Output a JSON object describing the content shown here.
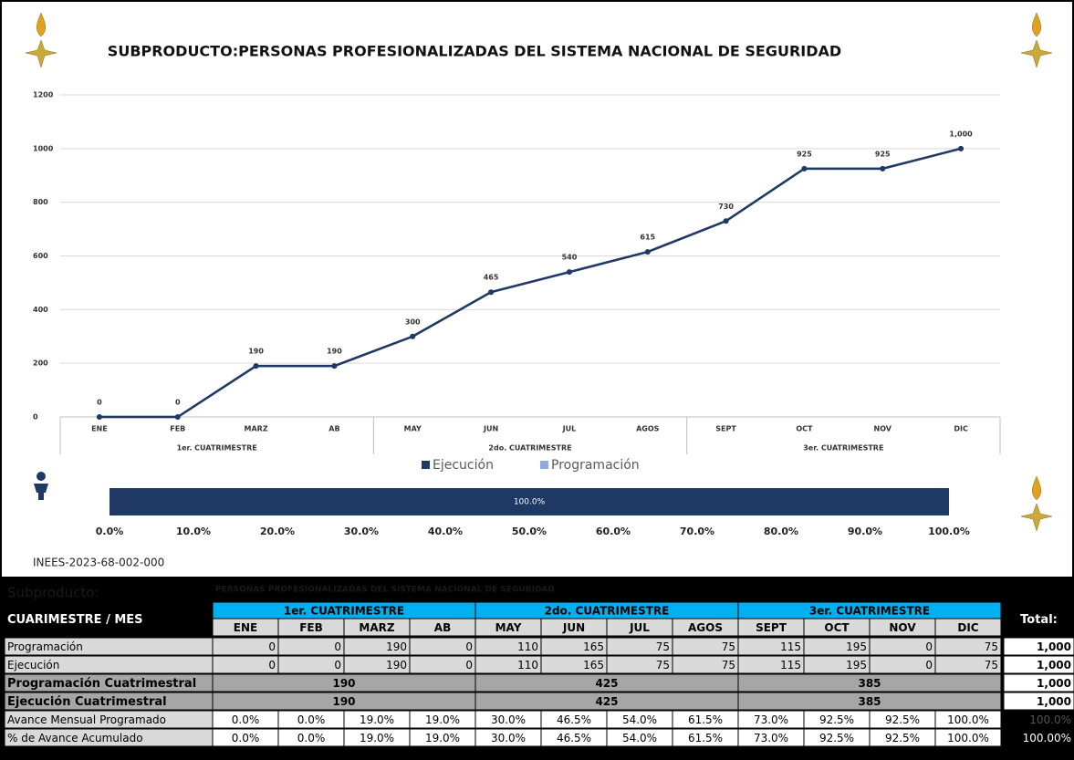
{
  "chart_data": [
    {
      "type": "line",
      "title": "SUBPRODUCTO:PERSONAS PROFESIONALIZADAS DEL SISTEMA NACIONAL DE SEGURIDAD",
      "categories": [
        "ENE",
        "FEB",
        "MARZ",
        "AB",
        "MAY",
        "JUN",
        "JUL",
        "AGOS",
        "SEPT",
        "OCT",
        "NOV",
        "DIC"
      ],
      "groups": [
        "1er. CUATRIMESTRE",
        "2do. CUATRIMESTRE",
        "3er. CUATRIMESTRE"
      ],
      "series": [
        {
          "name": "Programación",
          "color": "#8faadc",
          "values": [
            0,
            0,
            190,
            190,
            300,
            465,
            540,
            615,
            730,
            925,
            925,
            1000
          ]
        },
        {
          "name": "Ejecución",
          "color": "#1f3864",
          "values": [
            0,
            0,
            190,
            190,
            300,
            465,
            540,
            615,
            730,
            925,
            925,
            1000
          ],
          "value_labels": [
            "0",
            "0",
            "190",
            "190",
            "300",
            "465",
            "540",
            "615",
            "730",
            "925",
            "925",
            "1,000"
          ]
        }
      ],
      "legend_order": [
        1,
        0
      ],
      "ylim": [
        0,
        1200
      ],
      "yticks": [
        0,
        200,
        400,
        600,
        800,
        1000,
        1200
      ],
      "grid": true,
      "legend": "bottom"
    },
    {
      "type": "hbar",
      "values": [
        100
      ],
      "value_labels": [
        "100.0%"
      ],
      "color": "#1f3864",
      "xlim": [
        0,
        100
      ],
      "xticks": [
        {
          "value": 0,
          "label": "0.0%"
        },
        {
          "value": 10,
          "label": "10.0%"
        },
        {
          "value": 20,
          "label": "20.0%"
        },
        {
          "value": 30,
          "label": "30.0%"
        },
        {
          "value": 40,
          "label": "40.0%"
        },
        {
          "value": 50,
          "label": "50.0%"
        },
        {
          "value": 60,
          "label": "60.0%"
        },
        {
          "value": 70,
          "label": "70.0%"
        },
        {
          "value": 80,
          "label": "80.0%"
        },
        {
          "value": 90,
          "label": "90.0%"
        },
        {
          "value": 100,
          "label": "100.0%"
        }
      ]
    }
  ],
  "code": "INEES-2023-68-002-000",
  "table": {
    "subproduct_label": "Subproducto:",
    "subproduct_value": "PERSONAS PROFESIONALIZADAS DEL SISTEMA NACIONAL DE SEGURIDAD",
    "corner": "CUARIMESTRE / MES",
    "groups": [
      "1er. CUATRIMESTRE",
      "2do. CUATRIMESTRE",
      "3er. CUATRIMESTRE"
    ],
    "months": [
      "ENE",
      "FEB",
      "MARZ",
      "AB",
      "MAY",
      "JUN",
      "JUL",
      "AGOS",
      "SEPT",
      "OCT",
      "NOV",
      "DIC"
    ],
    "total_header": "Total:",
    "rows": [
      {
        "label": "Programación",
        "cells": [
          "0",
          "0",
          "190",
          "0",
          "110",
          "165",
          "75",
          "75",
          "115",
          "195",
          "0",
          "75"
        ],
        "total": "1,000"
      },
      {
        "label": "Ejecución",
        "cells": [
          "0",
          "0",
          "190",
          "0",
          "110",
          "165",
          "75",
          "75",
          "115",
          "195",
          "0",
          "75"
        ],
        "total": "1,000"
      },
      {
        "label": "Programación Cuatrimestral",
        "cells": [
          "190",
          "425",
          "385"
        ],
        "total": "1,000"
      },
      {
        "label": "Ejecución Cuatrimestral",
        "cells": [
          "190",
          "425",
          "385"
        ],
        "total": "1,000"
      },
      {
        "label": "Avance Mensual Programado",
        "cells": [
          "0.0%",
          "0.0%",
          "19.0%",
          "19.0%",
          "30.0%",
          "46.5%",
          "54.0%",
          "61.5%",
          "73.0%",
          "92.5%",
          "92.5%",
          "100.0%"
        ],
        "total": "100.0%"
      },
      {
        "label": "% de Avance Acumulado",
        "cells": [
          "0.0%",
          "0.0%",
          "19.0%",
          "19.0%",
          "30.0%",
          "46.5%",
          "54.0%",
          "61.5%",
          "73.0%",
          "92.5%",
          "92.5%",
          "100.0%"
        ],
        "total": "100.00%"
      }
    ]
  }
}
